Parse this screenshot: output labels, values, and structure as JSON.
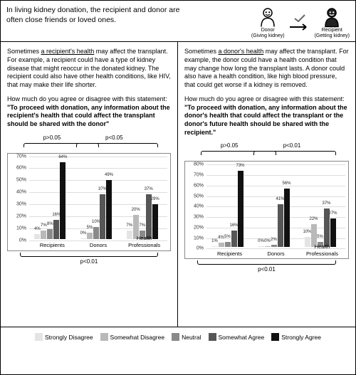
{
  "header": {
    "text": "In living kidney donation, the recipient and donor are often close friends or loved ones.",
    "donor_label": "Donor",
    "donor_sub": "(Giving kidney)",
    "recipient_label": "Recipient",
    "recipient_sub": "(Getting kidney)"
  },
  "palette": {
    "strongly_disagree": "#e4e4e4",
    "somewhat_disagree": "#b9b9b9",
    "neutral": "#8a8a8a",
    "somewhat_agree": "#565656",
    "strongly_agree": "#111111"
  },
  "legend": [
    "Strongly Disagree",
    "Somewhat Disagree",
    "Neutral",
    "Somewhat Agree",
    "Strongly Agree"
  ],
  "left": {
    "intro_pre": "Sometimes ",
    "intro_u": "a recipient's health",
    "intro_post": " may affect the transplant. For example, a recipient could have a type of kidney disease that might reoccur in the donated kidney. The recipient could also have other health conditions, like HIV, that may make their life shorter.",
    "q_lead": "How much do you agree or disagree with this statement:",
    "q_stmt": "\"To proceed with donation, any information about the recipient's health that could affect the transplant should be shared with the donor\"",
    "p_left": "p>0.05",
    "p_right": "p<0.05",
    "p_overall": "p<0.01",
    "chart": {
      "ymax": 70,
      "ystep": 10,
      "groups": [
        {
          "label": "Recipients",
          "vals": [
            4,
            7,
            8,
            16,
            64
          ]
        },
        {
          "label": "Donors",
          "vals": [
            0,
            5,
            10,
            37,
            49
          ]
        },
        {
          "label": "Health Professionals",
          "vals": [
            7,
            20,
            7,
            37,
            29
          ]
        }
      ]
    }
  },
  "right": {
    "intro_pre": "Sometimes ",
    "intro_u": "a donor's health",
    "intro_post": " may affect the transplant. For example, the donor could have a health condition that may change how long the transplant lasts. A donor could also have a health condition, like high blood pressure, that could get worse if a kidney is removed.",
    "q_lead": "How much do you agree or disagree with this statement:",
    "q_stmt": "\"To proceed with donation, any information about the donor's health that could affect the transplant or the donor's future health should be shared with the recipient.\"",
    "p_left": "p>0.05",
    "p_right": "p<0.01",
    "p_overall": "p<0.01",
    "chart": {
      "ymax": 80,
      "ystep": 10,
      "groups": [
        {
          "label": "Recipients",
          "vals": [
            1,
            4,
            5,
            16,
            73
          ]
        },
        {
          "label": "Donors",
          "vals": [
            0,
            0,
            2,
            41,
            56
          ]
        },
        {
          "label": "Health Professionals",
          "vals": [
            10,
            22,
            5,
            37,
            27
          ]
        }
      ]
    }
  }
}
